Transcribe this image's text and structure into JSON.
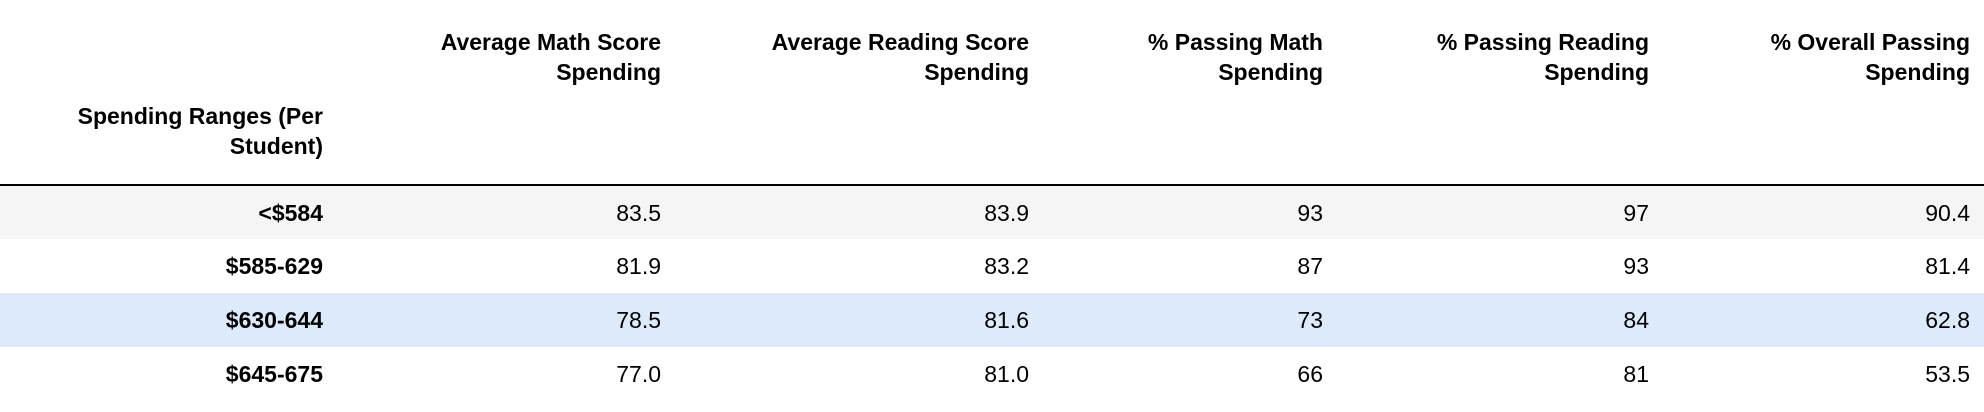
{
  "table": {
    "columns": [
      "Average Math Score Spending",
      "Average Reading Score Spending",
      "% Passing Math Spending",
      "% Passing Reading Spending",
      "% Overall Passing Spending"
    ],
    "column_lines": [
      [
        "Average Math Score",
        "Spending"
      ],
      [
        "Average Reading Score",
        "Spending"
      ],
      [
        "% Passing Math",
        "Spending"
      ],
      [
        "% Passing Reading",
        "Spending"
      ],
      [
        "% Overall Passing",
        "Spending"
      ]
    ],
    "index_name_lines": [
      "Spending Ranges (Per",
      "Student)"
    ],
    "rows": [
      {
        "label": "<$584",
        "values": [
          "83.5",
          "83.9",
          "93",
          "97",
          "90.4"
        ]
      },
      {
        "label": "$585-629",
        "values": [
          "81.9",
          "83.2",
          "87",
          "93",
          "81.4"
        ]
      },
      {
        "label": "$630-644",
        "values": [
          "78.5",
          "81.6",
          "73",
          "84",
          "62.8"
        ]
      },
      {
        "label": "$645-675",
        "values": [
          "77.0",
          "81.0",
          "66",
          "81",
          "53.5"
        ]
      }
    ]
  }
}
